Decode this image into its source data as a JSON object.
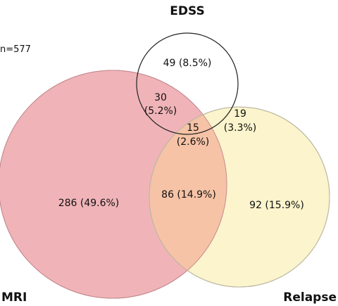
{
  "sample_size": "n=577",
  "sets": {
    "mri": {
      "label": "MRI",
      "fill": "#f0b4b8",
      "stroke": "#c48a8e"
    },
    "edss": {
      "label": "EDSS",
      "fill": "none",
      "stroke": "#222222"
    },
    "relapse": {
      "label": "Relapse",
      "fill": "#fbf4cc",
      "stroke": "#b9b6a2"
    }
  },
  "overlap_colors": {
    "mri_relapse": "#f6c3a6"
  },
  "regions": {
    "edss_only": {
      "line1": "49 (8.5%)"
    },
    "mri_edss": {
      "line1": "30",
      "line2": "(5.2%)"
    },
    "edss_relapse": {
      "line1": "19",
      "line2": "(3.3%)"
    },
    "all_three": {
      "line1": "15",
      "line2": "(2.6%)"
    },
    "mri_only": {
      "line1": "286 (49.6%)"
    },
    "mri_relapse": {
      "line1": "86 (14.9%)"
    },
    "relapse_only": {
      "line1": "92 (15.9%)"
    }
  }
}
